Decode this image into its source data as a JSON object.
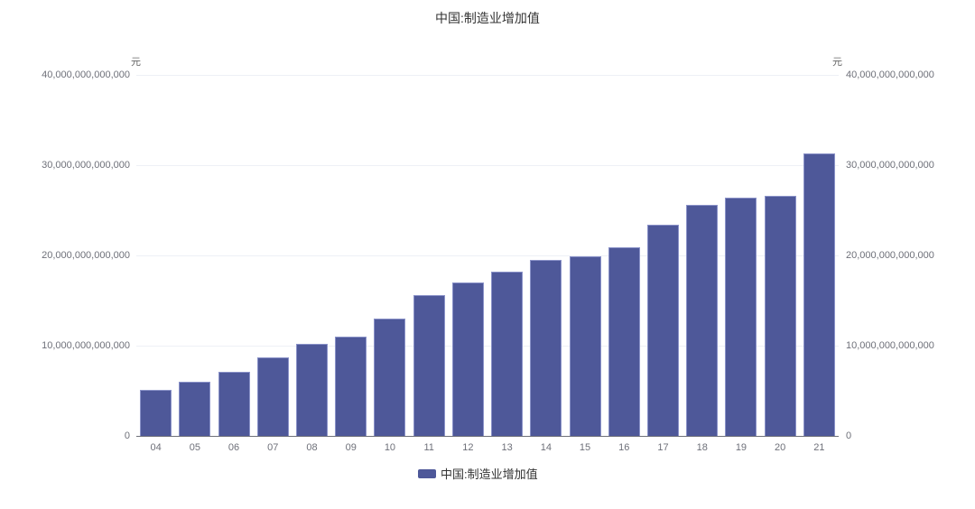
{
  "chart_data": {
    "type": "bar",
    "title": "中国:制造业增加值",
    "xlabel": "",
    "ylabel": "元",
    "ylabel_right": "元",
    "ylim": [
      0,
      40000000000000
    ],
    "yticks": [
      "0",
      "10,000,000,000,000",
      "20,000,000,000,000",
      "30,000,000,000,000",
      "40,000,000,000,000"
    ],
    "categories": [
      "04",
      "05",
      "06",
      "07",
      "08",
      "09",
      "10",
      "11",
      "12",
      "13",
      "14",
      "15",
      "16",
      "17",
      "18",
      "19",
      "20",
      "21"
    ],
    "series": [
      {
        "name": "中国:制造业增加值",
        "color": "#4e5899",
        "values": [
          5150000000000,
          6000000000000,
          7100000000000,
          8700000000000,
          10200000000000,
          11000000000000,
          13000000000000,
          15600000000000,
          17000000000000,
          18200000000000,
          19500000000000,
          19900000000000,
          20900000000000,
          23400000000000,
          25600000000000,
          26400000000000,
          26600000000000,
          31300000000000
        ]
      }
    ],
    "grid": true,
    "legend_position": "bottom"
  }
}
